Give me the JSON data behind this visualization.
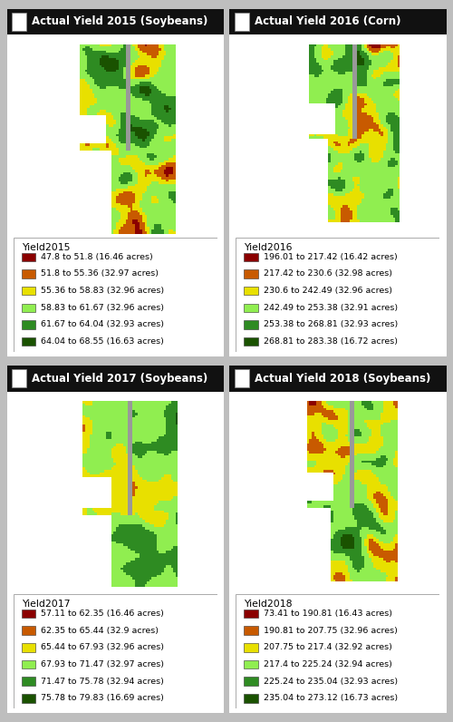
{
  "panels": [
    {
      "title": "Actual Yield 2015 (Soybeans)",
      "legend_title": "Yield2015",
      "colors": [
        "#8B0000",
        "#C85A00",
        "#E8E000",
        "#90EE50",
        "#2E8B22",
        "#1A5200"
      ],
      "legend_entries": [
        "47.8 to 51.8 (16.46 acres)",
        "51.8 to 55.36 (32.97 acres)",
        "55.36 to 58.83 (32.96 acres)",
        "58.83 to 61.67 (32.96 acres)",
        "61.67 to 64.04 (32.93 acres)",
        "64.04 to 68.55 (16.63 acres)"
      ],
      "class_probs": [
        0.08,
        0.16,
        0.16,
        0.22,
        0.24,
        0.14
      ]
    },
    {
      "title": "Actual Yield 2016 (Corn)",
      "legend_title": "Yield2016",
      "colors": [
        "#8B0000",
        "#C85A00",
        "#E8E000",
        "#90EE50",
        "#2E8B22",
        "#1A5200"
      ],
      "legend_entries": [
        "196.01 to 217.42 (16.42 acres)",
        "217.42 to 230.6 (32.98 acres)",
        "230.6 to 242.49 (32.96 acres)",
        "242.49 to 253.38 (32.91 acres)",
        "253.38 to 268.81 (32.93 acres)",
        "268.81 to 283.38 (16.72 acres)"
      ],
      "class_probs": [
        0.14,
        0.16,
        0.14,
        0.2,
        0.22,
        0.14
      ]
    },
    {
      "title": "Actual Yield 2017 (Soybeans)",
      "legend_title": "Yield2017",
      "colors": [
        "#8B0000",
        "#C85A00",
        "#E8E000",
        "#90EE50",
        "#2E8B22",
        "#1A5200"
      ],
      "legend_entries": [
        "57.11 to 62.35 (16.46 acres)",
        "62.35 to 65.44 (32.9 acres)",
        "65.44 to 67.93 (32.96 acres)",
        "67.93 to 71.47 (32.97 acres)",
        "71.47 to 75.78 (32.94 acres)",
        "75.78 to 79.83 (16.69 acres)"
      ],
      "class_probs": [
        0.08,
        0.15,
        0.16,
        0.24,
        0.22,
        0.15
      ]
    },
    {
      "title": "Actual Yield 2018 (Soybeans)",
      "legend_title": "Yield2018",
      "colors": [
        "#8B0000",
        "#C85A00",
        "#E8E000",
        "#90EE50",
        "#2E8B22",
        "#1A5200"
      ],
      "legend_entries": [
        "73.41 to 190.81 (16.43 acres)",
        "190.81 to 207.75 (32.96 acres)",
        "207.75 to 217.4 (32.92 acres)",
        "217.4 to 225.24 (32.94 acres)",
        "225.24 to 235.04 (32.93 acres)",
        "235.04 to 273.12 (16.73 acres)"
      ],
      "class_probs": [
        0.08,
        0.16,
        0.16,
        0.22,
        0.24,
        0.14
      ]
    }
  ],
  "header_bg": "#111111",
  "header_text_color": "#ffffff",
  "panel_bg": "#ffffff",
  "outer_bg": "#bebebe",
  "header_fontsize": 8.5,
  "legend_fontsize": 6.8,
  "legend_title_fontsize": 7.8
}
